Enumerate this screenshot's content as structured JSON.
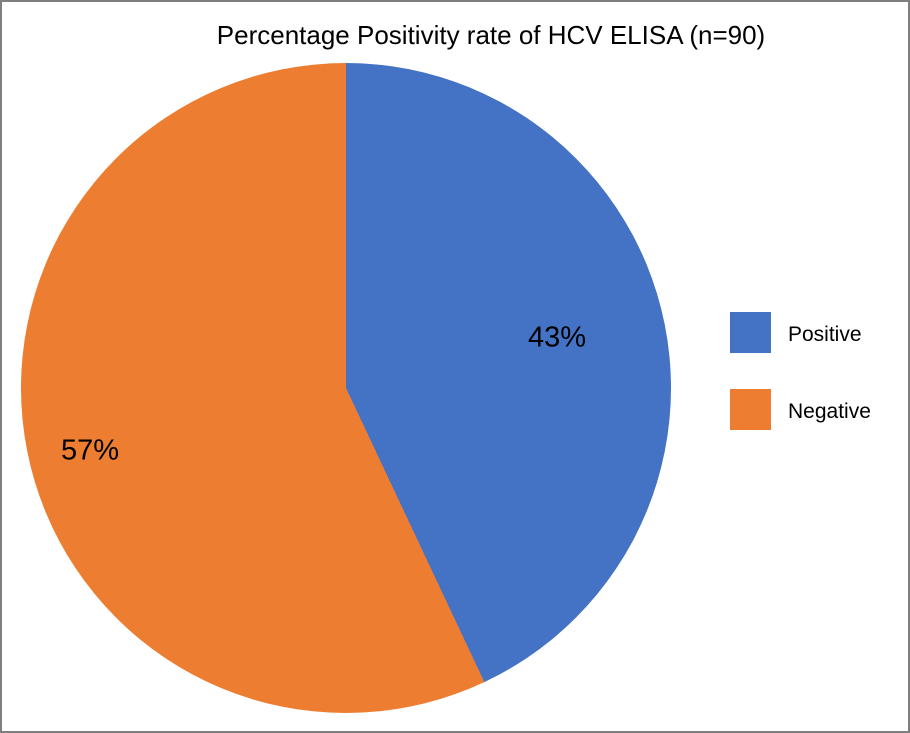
{
  "chart_data": {
    "type": "pie",
    "title": "Percentage Positivity rate of HCV ELISA (n=90)",
    "n": 90,
    "categories": [
      "Positive",
      "Negative"
    ],
    "values": [
      43,
      57
    ],
    "value_labels": [
      "43%",
      "57%"
    ],
    "colors": [
      "#4472C4",
      "#ED7D31"
    ],
    "start_angle_deg": 0,
    "direction": "clockwise",
    "legend_position": "right"
  },
  "legend": {
    "items": [
      {
        "label": "Positive",
        "color": "#4472C4"
      },
      {
        "label": "Negative",
        "color": "#ED7D31"
      }
    ]
  },
  "frame": {
    "border_color": "#7f7f7f",
    "background": "#ffffff"
  }
}
